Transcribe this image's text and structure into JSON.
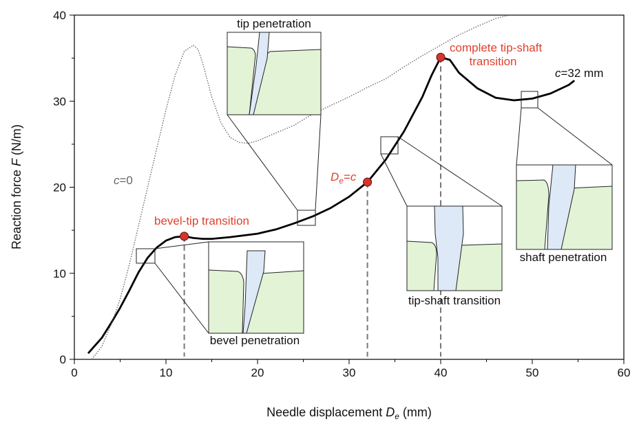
{
  "chart_data": {
    "type": "line",
    "xlabel": [
      "Needle displacement ",
      "D",
      "e",
      " (mm)"
    ],
    "ylabel": [
      "Reaction force ",
      "F",
      " (N/m)"
    ],
    "xlim": [
      0,
      60
    ],
    "xticks": [
      0,
      10,
      20,
      30,
      40,
      50,
      60
    ],
    "xminorticks": [
      5,
      15,
      25,
      35,
      45,
      55
    ],
    "ylim": [
      0,
      40
    ],
    "yticks": [
      0,
      10,
      20,
      30,
      40
    ],
    "yminorticks": [
      5,
      15,
      25,
      35
    ],
    "series": [
      {
        "name": [
          "c",
          "=32 mm"
        ],
        "color": "#000000",
        "line_style": "solid",
        "x": [
          1.5,
          3,
          4,
          5,
          6,
          7,
          8,
          9,
          10,
          11,
          12,
          13,
          14,
          15,
          17,
          20,
          22,
          24,
          26,
          28,
          30,
          32,
          34,
          36,
          38,
          39,
          40,
          41,
          42,
          44,
          46,
          48,
          50,
          52,
          54,
          54.6
        ],
        "values": [
          0.7,
          2.5,
          4.2,
          6,
          8,
          10.1,
          11.8,
          13,
          13.8,
          14.2,
          14.3,
          14.1,
          14.0,
          14.0,
          14.2,
          14.6,
          15.1,
          15.8,
          16.6,
          17.6,
          18.9,
          20.6,
          23.2,
          26.5,
          30.5,
          33,
          35.1,
          34.8,
          33.3,
          31.5,
          30.4,
          30.1,
          30.3,
          30.9,
          31.9,
          32.4
        ]
      },
      {
        "name": [
          "c",
          "=0"
        ],
        "color": "#555555",
        "line_style": "dotted",
        "x": [
          1.9,
          3,
          4,
          5,
          6,
          7,
          8,
          9,
          10,
          11,
          12,
          13,
          13.5,
          14,
          15,
          16,
          17,
          18,
          19,
          20,
          22,
          24,
          26,
          28,
          30,
          32,
          34,
          36,
          38,
          40,
          42,
          44,
          46,
          47.5
        ],
        "values": [
          0,
          1.5,
          4,
          7,
          11,
          15.5,
          20,
          24.5,
          29,
          33,
          35.8,
          36.5,
          36,
          34.5,
          30.5,
          27.5,
          25.8,
          25.2,
          25.1,
          25.4,
          26.3,
          27.2,
          28.5,
          29.5,
          30.5,
          31.6,
          32.6,
          34,
          35.3,
          36.5,
          37.7,
          38.7,
          39.6,
          40
        ]
      }
    ],
    "points": {
      "x": [
        12,
        32,
        40
      ],
      "y": [
        14.3,
        20.6,
        35.1
      ],
      "color": "#d9342b"
    },
    "annotations": {
      "bevel_tip": "bevel-tip transition",
      "de_c": [
        "D",
        "e",
        "=",
        "c"
      ],
      "complete": [
        "complete tip-shaft",
        "transition"
      ],
      "tip_penetration": "tip penetration",
      "bevel_penetration": "bevel penetration",
      "tip_shaft_transition": "tip-shaft transition",
      "shaft_penetration": "shaft penetration"
    }
  }
}
